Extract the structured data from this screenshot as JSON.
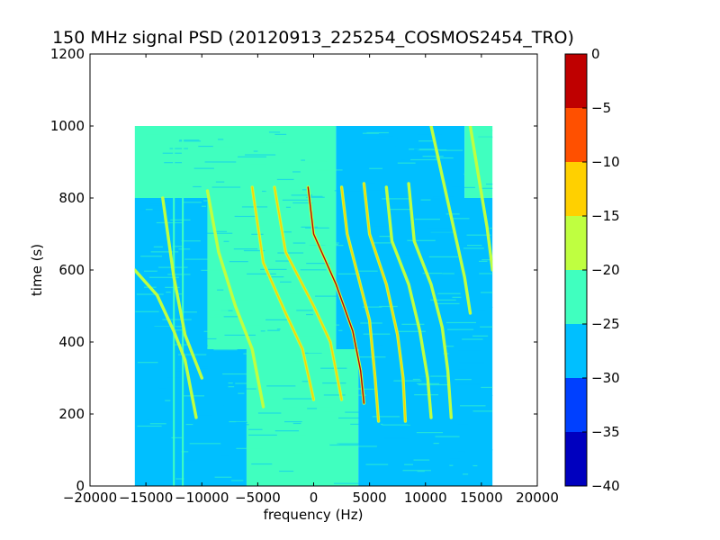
{
  "chart_data": {
    "type": "heatmap",
    "title": "150 MHz signal PSD (20120913_225254_COSMOS2454_TRO)",
    "xlabel": "frequency (Hz)",
    "ylabel": "time (s)",
    "xlim": [
      -20000,
      20000
    ],
    "ylim": [
      0,
      1200
    ],
    "xticks": [
      -20000,
      -15000,
      -10000,
      -5000,
      0,
      5000,
      10000,
      15000,
      20000
    ],
    "xtick_labels": [
      "−20000",
      "−15000",
      "−10000",
      "−5000",
      "0",
      "5000",
      "10000",
      "15000",
      "20000"
    ],
    "yticks": [
      0,
      200,
      400,
      600,
      800,
      1000,
      1200
    ],
    "ytick_labels": [
      "0",
      "200",
      "400",
      "600",
      "800",
      "1000",
      "1200"
    ],
    "data_extent": {
      "freq_min": -16000,
      "freq_max": 16000,
      "time_min": 0,
      "time_max": 1000
    },
    "background_levels": {
      "upper_band": {
        "time_range": [
          800,
          1000
        ],
        "regions": [
          [
            -16000,
            2000,
            -22.5
          ],
          [
            2000,
            13500,
            -27.5
          ],
          [
            13500,
            16000,
            -22.5
          ]
        ]
      },
      "middle_band": {
        "time_range": [
          380,
          800
        ],
        "regions": [
          [
            -16000,
            -9500,
            -27.5
          ],
          [
            -9500,
            2000,
            -22.5
          ],
          [
            2000,
            16000,
            -27.5
          ]
        ]
      },
      "lower_band": {
        "time_range": [
          0,
          380
        ],
        "regions": [
          [
            -16000,
            -6000,
            -27.5
          ],
          [
            -6000,
            4000,
            -22.5
          ],
          [
            4000,
            16000,
            -27.5
          ]
        ]
      }
    },
    "signal_traces": [
      {
        "peak": -18,
        "points": [
          [
            -16000,
            600
          ],
          [
            -14000,
            530
          ],
          [
            -12500,
            430
          ],
          [
            -11500,
            350
          ],
          [
            -10500,
            190
          ]
        ]
      },
      {
        "peak": -18,
        "points": [
          [
            -13500,
            800
          ],
          [
            -12500,
            580
          ],
          [
            -11500,
            420
          ],
          [
            -10000,
            300
          ]
        ]
      },
      {
        "peak": -18,
        "points": [
          [
            -9500,
            820
          ],
          [
            -8500,
            650
          ],
          [
            -7000,
            500
          ],
          [
            -5500,
            380
          ],
          [
            -4500,
            220
          ]
        ]
      },
      {
        "peak": -15,
        "points": [
          [
            -5500,
            830
          ],
          [
            -4500,
            620
          ],
          [
            -2500,
            480
          ],
          [
            -1000,
            380
          ],
          [
            0,
            240
          ]
        ]
      },
      {
        "peak": -12,
        "points": [
          [
            -3500,
            830
          ],
          [
            -2500,
            650
          ],
          [
            0,
            500
          ],
          [
            1500,
            400
          ],
          [
            2500,
            240
          ]
        ]
      },
      {
        "peak": -5,
        "points": [
          [
            -500,
            830
          ],
          [
            0,
            700
          ],
          [
            2000,
            560
          ],
          [
            3500,
            430
          ],
          [
            4200,
            320
          ],
          [
            4500,
            230
          ]
        ]
      },
      {
        "peak": -15,
        "points": [
          [
            2500,
            830
          ],
          [
            3000,
            700
          ],
          [
            4000,
            580
          ],
          [
            5000,
            460
          ],
          [
            5500,
            300
          ],
          [
            5800,
            180
          ]
        ]
      },
      {
        "peak": -15,
        "points": [
          [
            4500,
            840
          ],
          [
            5000,
            700
          ],
          [
            6500,
            560
          ],
          [
            7500,
            420
          ],
          [
            8000,
            300
          ],
          [
            8200,
            180
          ]
        ]
      },
      {
        "peak": -18,
        "points": [
          [
            6500,
            830
          ],
          [
            7000,
            680
          ],
          [
            8500,
            560
          ],
          [
            9500,
            430
          ],
          [
            10200,
            300
          ],
          [
            10500,
            190
          ]
        ]
      },
      {
        "peak": -18,
        "points": [
          [
            8500,
            840
          ],
          [
            9000,
            680
          ],
          [
            10500,
            560
          ],
          [
            11500,
            440
          ],
          [
            12000,
            320
          ],
          [
            12300,
            190
          ]
        ]
      },
      {
        "peak": -20,
        "points": [
          [
            10500,
            1000
          ],
          [
            11500,
            860
          ],
          [
            12500,
            720
          ],
          [
            13500,
            580
          ],
          [
            14000,
            480
          ]
        ]
      },
      {
        "peak": -20,
        "points": [
          [
            14000,
            1000
          ],
          [
            14800,
            850
          ],
          [
            15500,
            720
          ],
          [
            16000,
            600
          ]
        ]
      }
    ],
    "vertical_lines": [
      {
        "freq": -11700,
        "time_range": [
          0,
          1000
        ],
        "level": -22.5
      },
      {
        "freq": -12500,
        "time_range": [
          0,
          1000
        ],
        "level": -22.5
      }
    ],
    "colorbar": {
      "vmin": -40,
      "vmax": 0,
      "ticks": [
        0,
        -5,
        -10,
        -15,
        -20,
        -25,
        -30,
        -35,
        -40
      ],
      "tick_labels": [
        "0",
        "−5",
        "−10",
        "−15",
        "−20",
        "−25",
        "−30",
        "−35",
        "−40"
      ],
      "levels": [
        {
          "from": -40,
          "to": -35,
          "color": "#0000bf"
        },
        {
          "from": -35,
          "to": -30,
          "color": "#0040ff"
        },
        {
          "from": -30,
          "to": -25,
          "color": "#00bfff"
        },
        {
          "from": -25,
          "to": -20,
          "color": "#40ffbf"
        },
        {
          "from": -20,
          "to": -15,
          "color": "#bfff40"
        },
        {
          "from": -15,
          "to": -10,
          "color": "#ffd000"
        },
        {
          "from": -10,
          "to": -5,
          "color": "#ff5000"
        },
        {
          "from": -5,
          "to": 0,
          "color": "#bf0000"
        }
      ]
    },
    "grid": false,
    "legend": "none"
  }
}
